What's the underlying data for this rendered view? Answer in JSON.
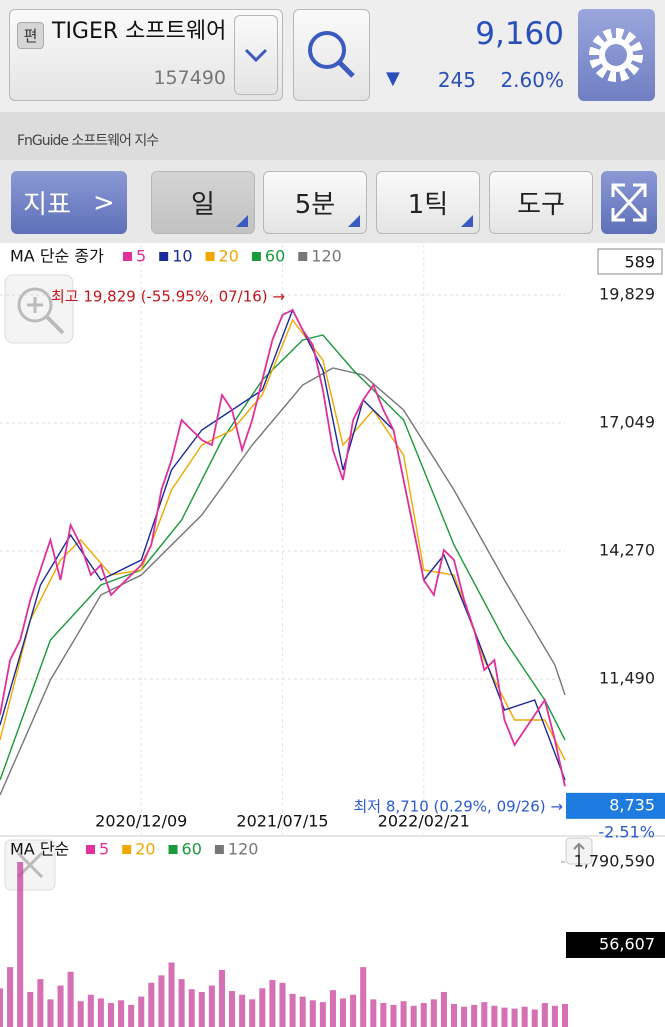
{
  "header": {
    "badge": "편",
    "name": "TIGER 소프트웨어",
    "code": "157490",
    "price": "9,160",
    "direction": "▼",
    "change": "245",
    "change_rate": "2.60%",
    "index_name": "FnGuide 소프트웨어 지수"
  },
  "toolbar": {
    "indicator": "지표",
    "indicator_arrow": ">",
    "buttons": [
      "일",
      "5분",
      "1틱",
      "도구"
    ]
  },
  "chart_data": [
    {
      "type": "line",
      "title": "MA 단순 종가",
      "box_label": "589",
      "x": [
        0,
        1,
        2,
        3,
        4,
        5,
        6,
        7,
        8,
        9,
        10,
        11,
        12,
        13,
        14,
        15,
        16,
        17,
        18,
        19,
        20,
        21,
        22,
        23,
        24,
        25,
        26,
        27,
        28,
        29,
        30,
        31,
        32,
        33,
        34,
        35,
        36,
        37,
        38,
        39,
        40,
        41,
        42,
        43,
        44,
        45,
        46,
        47,
        48,
        49,
        50,
        51,
        52,
        53,
        54,
        55,
        56
      ],
      "xlim": [
        0,
        56
      ],
      "xticks": [
        {
          "value": 14,
          "label": "2020/12/09"
        },
        {
          "value": 28,
          "label": "2021/07/15"
        },
        {
          "value": 42,
          "label": "2022/02/21"
        }
      ],
      "ylim": [
        8102,
        20915
      ],
      "yticks": [
        {
          "value": 11490,
          "label": "11,490"
        },
        {
          "value": 14270,
          "label": "14,270"
        },
        {
          "value": 17049,
          "label": "17,049"
        },
        {
          "value": 19829,
          "label": "19,829"
        }
      ],
      "grid": true,
      "series": [
        {
          "name": "5",
          "color": "#e0309a",
          "values": [
            10708,
            11903,
            12337,
            13206,
            13857,
            14509,
            13640,
            14834,
            14400,
            13749,
            13966,
            13314,
            13531,
            13749,
            13966,
            14400,
            15594,
            16246,
            17114,
            16897,
            16680,
            16572,
            17657,
            17332,
            16463,
            17114,
            17983,
            18852,
            19395,
            19503,
            19069,
            18743,
            17766,
            16463,
            15812,
            17114,
            17549,
            17875,
            17332,
            16897,
            15812,
            14726,
            13640,
            13314,
            14291,
            14074,
            13206,
            12554,
            11685,
            11903,
            10600,
            10057,
            10383,
            10708,
            11034,
            10165,
            9160
          ]
        },
        {
          "name": "10",
          "color": "#1a2a9c",
          "x": [
            0,
            4,
            7,
            10,
            14,
            17,
            20,
            23,
            26,
            29,
            32,
            34,
            36,
            39,
            42,
            44,
            47,
            50,
            53,
            56
          ],
          "values": [
            10491,
            13531,
            14617,
            13640,
            14074,
            16029,
            16897,
            17332,
            17766,
            19503,
            18200,
            16029,
            17549,
            16897,
            13640,
            14183,
            12554,
            10817,
            11034,
            9297
          ]
        },
        {
          "name": "20",
          "color": "#f0a800",
          "x": [
            0,
            3,
            6,
            8,
            11,
            14,
            17,
            20,
            23,
            26,
            29,
            32,
            34,
            37,
            40,
            42,
            45,
            48,
            51,
            54,
            56
          ],
          "values": [
            10165,
            12771,
            14074,
            14509,
            13749,
            13857,
            15594,
            16572,
            16897,
            17657,
            19286,
            18418,
            16572,
            17332,
            16354,
            13857,
            13749,
            11903,
            10600,
            10600,
            9731
          ]
        },
        {
          "name": "60",
          "color": "#1a9a3a",
          "x": [
            0,
            5,
            10,
            14,
            18,
            22,
            26,
            30,
            32,
            35,
            40,
            45,
            50,
            54,
            56
          ],
          "values": [
            9297,
            12337,
            13531,
            13857,
            14943,
            16680,
            17983,
            18852,
            18960,
            18200,
            17114,
            14400,
            12337,
            11034,
            10165
          ]
        },
        {
          "name": "120",
          "color": "#777777",
          "x": [
            0,
            5,
            10,
            14,
            20,
            25,
            30,
            33,
            36,
            40,
            45,
            50,
            55,
            56
          ],
          "values": [
            8971,
            11468,
            13314,
            13749,
            15052,
            16572,
            17875,
            18244,
            18092,
            17332,
            15594,
            13640,
            11794,
            11142
          ]
        }
      ],
      "annotations": {
        "high": "최고 19,829 (-55.95%, 07/16) →",
        "low": "최저 8,710 (0.29%, 09/26) →"
      },
      "price_marker": {
        "value": 8735,
        "label": "8,735"
      },
      "price_change": "-2.51%"
    },
    {
      "type": "bar",
      "title": "MA 단순",
      "color": "#c8409c",
      "xlim": [
        0,
        56
      ],
      "ylim": [
        0,
        1920800
      ],
      "yticks": [
        {
          "value": 1790590,
          "label": "1,790,590"
        }
      ],
      "current_label": "56,607",
      "legend": [
        {
          "name": "5",
          "color": "#e0309a"
        },
        {
          "name": "20",
          "color": "#f0a800"
        },
        {
          "name": "60",
          "color": "#1a9a3a"
        },
        {
          "name": "120",
          "color": "#777777"
        }
      ],
      "values": [
        420000,
        650000,
        1790590,
        380000,
        520000,
        300000,
        450000,
        600000,
        280000,
        350000,
        310000,
        260000,
        290000,
        240000,
        330000,
        480000,
        560000,
        700000,
        520000,
        410000,
        380000,
        450000,
        620000,
        390000,
        350000,
        300000,
        420000,
        510000,
        480000,
        360000,
        330000,
        290000,
        270000,
        400000,
        310000,
        350000,
        650000,
        300000,
        260000,
        240000,
        280000,
        230000,
        260000,
        300000,
        380000,
        250000,
        220000,
        240000,
        270000,
        230000,
        210000,
        200000,
        220000,
        190000,
        260000,
        230000,
        250000
      ]
    }
  ]
}
